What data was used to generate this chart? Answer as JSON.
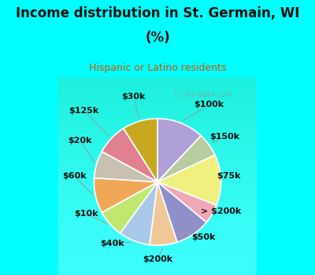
{
  "title_line1": "Income distribution in St. Germain, WI",
  "title_line2": "(%)",
  "subtitle": "Hispanic or Latino residents",
  "title_color": "#111111",
  "subtitle_color": "#cc5500",
  "bg_color": "#00ffff",
  "chart_bg_top": "#e8f8f0",
  "chart_bg_bottom": "#f8fff8",
  "watermark": "City-Data.com",
  "labels": [
    "$100k",
    "$150k",
    "$75k",
    "> $200k",
    "$50k",
    "$200k",
    "$40k",
    "$10k",
    "$60k",
    "$20k",
    "$125k",
    "$30k"
  ],
  "sizes": [
    12,
    6,
    13,
    5,
    9,
    7,
    8,
    7,
    9,
    7,
    8,
    9
  ],
  "colors": [
    "#b0a0d8",
    "#b8cca0",
    "#f0f080",
    "#f0a8b8",
    "#9090c8",
    "#f0c898",
    "#a8c8e8",
    "#c0e870",
    "#f0a858",
    "#c8c0b0",
    "#e08090",
    "#c8a820"
  ],
  "label_fontsize": 8,
  "label_color": "#111111",
  "title_fontsize": 12,
  "subtitle_fontsize": 9
}
